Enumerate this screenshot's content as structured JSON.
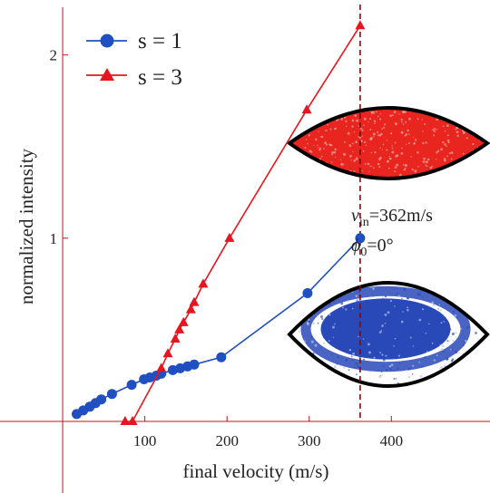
{
  "chart_data": {
    "type": "line",
    "xlabel": "final velocity (m/s)",
    "ylabel": "normalized  intensity",
    "xlim": [
      -10,
      520
    ],
    "ylim": [
      0,
      2.3
    ],
    "x_ticks": [
      100,
      200,
      300,
      400
    ],
    "y_ticks": [
      1,
      2
    ],
    "grid": false,
    "legend_position": "top-left",
    "series": [
      {
        "name": "s = 1",
        "marker": "circle",
        "color": "#1f4fc1",
        "x": [
          17,
          25,
          33,
          40,
          47,
          60,
          84,
          99,
          106,
          114,
          120,
          134,
          143,
          152,
          160,
          193,
          298,
          362
        ],
        "y": [
          0.04,
          0.06,
          0.08,
          0.1,
          0.12,
          0.15,
          0.2,
          0.23,
          0.24,
          0.25,
          0.26,
          0.28,
          0.29,
          0.3,
          0.31,
          0.35,
          0.7,
          1.0
        ]
      },
      {
        "name": "s = 3",
        "marker": "triangle",
        "color": "#e8141e",
        "x": [
          76,
          85,
          120,
          128,
          137,
          142,
          147,
          156,
          160,
          171,
          203,
          297,
          362
        ],
        "y": [
          0.0,
          0.0,
          0.29,
          0.37,
          0.45,
          0.5,
          0.54,
          0.61,
          0.65,
          0.75,
          1.0,
          1.7,
          2.16
        ]
      }
    ],
    "vline": {
      "x": 362,
      "style": "dashed",
      "color": "#7a0c0c"
    },
    "annotations": {
      "v_label": "v",
      "v_sub": "in",
      "v_value": "=362m/s",
      "phi_label": "ϕ",
      "phi_sub": "0",
      "phi_value": "=0°"
    },
    "insets": [
      {
        "name": "s = 3 phase-space distribution",
        "fill": "#e8251f",
        "speckle": "#f2a9a0",
        "border": "#000000"
      },
      {
        "name": "s = 1 phase-space distribution",
        "fill": "#2a49b8",
        "speckle": "#b8c4ea",
        "border": "#000000"
      }
    ],
    "axis_color": "#c8101e"
  }
}
